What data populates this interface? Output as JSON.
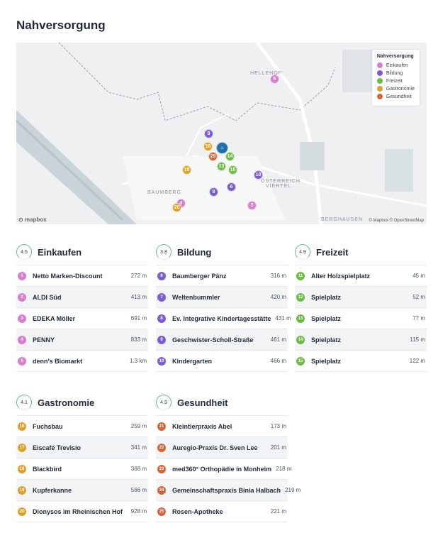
{
  "title": "Nahversorgung",
  "map": {
    "legend_title": "Nahversorgung",
    "labels": [
      "HELLEHOF",
      "BAUMBERG",
      "ÖSTERREICH VIERTEL",
      "BERGHAUSEN"
    ],
    "attribution": "© Mapbox © OpenStreetMap",
    "logo": "mapbox",
    "markers": [
      {
        "n": "9",
        "c": "#7b5ed1"
      },
      {
        "n": "5",
        "c": "#d67fd0"
      },
      {
        "n": "16",
        "c": "#e0a12b"
      },
      {
        "n": "25",
        "c": "#d2643a"
      },
      {
        "n": "14",
        "c": "#6cbd45"
      },
      {
        "n": "13",
        "c": "#6cbd45"
      },
      {
        "n": "15",
        "c": "#6cbd45"
      },
      {
        "n": "19",
        "c": "#e0a12b"
      },
      {
        "n": "10",
        "c": "#7b5ed1"
      },
      {
        "n": "6",
        "c": "#7b5ed1"
      },
      {
        "n": "8",
        "c": "#7b5ed1"
      },
      {
        "n": "4",
        "c": "#d67fd0"
      },
      {
        "n": "20",
        "c": "#e0a12b"
      },
      {
        "n": "3",
        "c": "#d67fd0"
      }
    ]
  },
  "categories": [
    {
      "name": "Einkaufen",
      "score": "4.5",
      "color": "#d67fd0",
      "icon": "shopping-bag-icon",
      "items": [
        {
          "n": "1",
          "name": "Netto Marken-Discount",
          "dist": "272 m"
        },
        {
          "n": "2",
          "name": "ALDI Süd",
          "dist": "413 m"
        },
        {
          "n": "3",
          "name": "EDEKA Möller",
          "dist": "691 m"
        },
        {
          "n": "4",
          "name": "PENNY",
          "dist": "833 m"
        },
        {
          "n": "5",
          "name": "denn's Biomarkt",
          "dist": "1.3 km"
        }
      ]
    },
    {
      "name": "Bildung",
      "score": "3.8",
      "color": "#7b5ed1",
      "icon": "school-icon",
      "items": [
        {
          "n": "6",
          "name": "Baumberger Pänz",
          "dist": "316 m"
        },
        {
          "n": "7",
          "name": "Weltenbummler",
          "dist": "420 m"
        },
        {
          "n": "8",
          "name": "Ev. Integrative Kindertagesstätte",
          "dist": "431 m"
        },
        {
          "n": "9",
          "name": "Geschwister-Scholl-Straße",
          "dist": "461 m"
        },
        {
          "n": "10",
          "name": "Kindergarten",
          "dist": "466 m"
        }
      ]
    },
    {
      "name": "Freizeit",
      "score": "4.9",
      "color": "#6cbd45",
      "icon": "leisure-icon",
      "items": [
        {
          "n": "11",
          "name": "Alter Holzspielplatz",
          "dist": "45 m"
        },
        {
          "n": "12",
          "name": "Spielplatz",
          "dist": "52 m"
        },
        {
          "n": "13",
          "name": "Spielplatz",
          "dist": "77 m"
        },
        {
          "n": "14",
          "name": "Spielplatz",
          "dist": "115 m"
        },
        {
          "n": "15",
          "name": "Spielplatz",
          "dist": "122 m"
        }
      ]
    },
    {
      "name": "Gastronomie",
      "score": "4.1",
      "color": "#e0a12b",
      "icon": "restaurant-icon",
      "items": [
        {
          "n": "16",
          "name": "Fuchsbau",
          "dist": "259 m"
        },
        {
          "n": "17",
          "name": "Eiscafé Trevisio",
          "dist": "341 m"
        },
        {
          "n": "18",
          "name": "Blackbird",
          "dist": "368 m"
        },
        {
          "n": "19",
          "name": "Kupferkanne",
          "dist": "566 m"
        },
        {
          "n": "20",
          "name": "Dionysos im Rheinischen Hof",
          "dist": "928 m"
        }
      ]
    },
    {
      "name": "Gesundheit",
      "score": "4.9",
      "color": "#d2643a",
      "icon": "health-icon",
      "items": [
        {
          "n": "21",
          "name": "Kleintierpraxis Abel",
          "dist": "173 m"
        },
        {
          "n": "22",
          "name": "Auregio-Praxis Dr. Sven Lee",
          "dist": "201 m"
        },
        {
          "n": "23",
          "name": "med360° Orthopädie in Monheim",
          "dist": "218 m"
        },
        {
          "n": "24",
          "name": "Gemeinschaftspraxis Binia Halbach",
          "dist": "219 m"
        },
        {
          "n": "25",
          "name": "Rosen-Apotheke",
          "dist": "221 m"
        }
      ]
    }
  ]
}
